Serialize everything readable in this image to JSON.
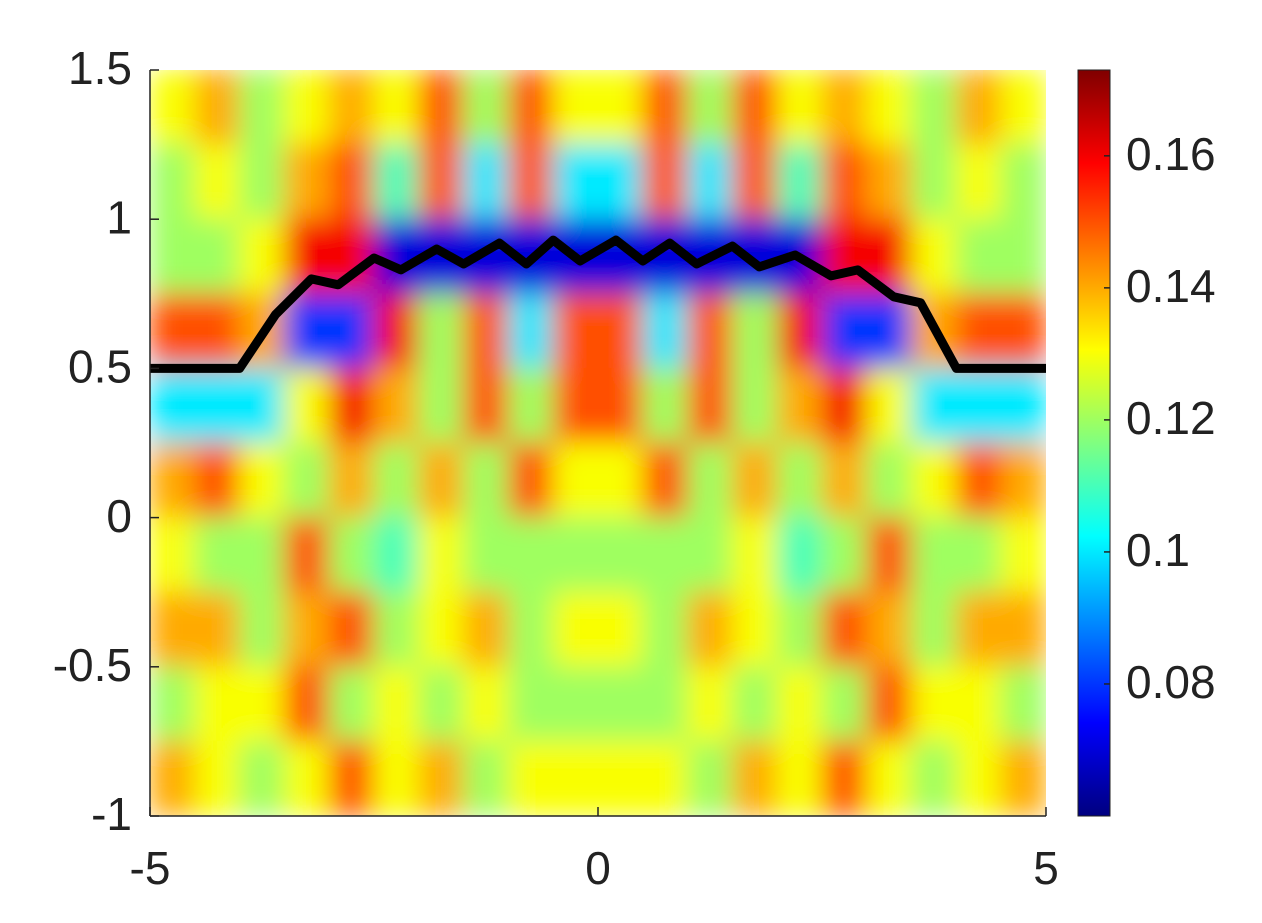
{
  "chart_data": {
    "type": "heatmap",
    "colormap": "jet",
    "x": [
      -4.75,
      -4.25,
      -3.75,
      -3.25,
      -2.75,
      -2.25,
      -1.75,
      -1.25,
      -0.75,
      -0.25,
      0.25,
      0.75,
      1.25,
      1.75,
      2.25,
      2.75,
      3.25,
      3.75,
      4.25,
      4.75
    ],
    "y": [
      1.375,
      1.125,
      0.875,
      0.625,
      0.375,
      0.125,
      -0.125,
      -0.375,
      -0.625,
      -0.875
    ],
    "z": [
      [
        0.13,
        0.14,
        0.12,
        0.13,
        0.14,
        0.13,
        0.15,
        0.12,
        0.15,
        0.13,
        0.13,
        0.15,
        0.12,
        0.15,
        0.13,
        0.14,
        0.13,
        0.12,
        0.14,
        0.13
      ],
      [
        0.12,
        0.13,
        0.12,
        0.14,
        0.15,
        0.11,
        0.15,
        0.1,
        0.15,
        0.1,
        0.1,
        0.15,
        0.1,
        0.15,
        0.11,
        0.15,
        0.14,
        0.12,
        0.13,
        0.12
      ],
      [
        0.12,
        0.12,
        0.13,
        0.16,
        0.16,
        0.07,
        0.07,
        0.07,
        0.07,
        0.07,
        0.07,
        0.07,
        0.07,
        0.07,
        0.07,
        0.16,
        0.16,
        0.13,
        0.12,
        0.12
      ],
      [
        0.15,
        0.15,
        0.14,
        0.08,
        0.08,
        0.16,
        0.12,
        0.15,
        0.1,
        0.15,
        0.15,
        0.1,
        0.15,
        0.12,
        0.16,
        0.08,
        0.08,
        0.14,
        0.15,
        0.15
      ],
      [
        0.1,
        0.1,
        0.1,
        0.13,
        0.16,
        0.14,
        0.12,
        0.15,
        0.12,
        0.15,
        0.15,
        0.12,
        0.15,
        0.12,
        0.14,
        0.16,
        0.13,
        0.1,
        0.1,
        0.1
      ],
      [
        0.14,
        0.15,
        0.13,
        0.12,
        0.14,
        0.12,
        0.14,
        0.12,
        0.15,
        0.13,
        0.13,
        0.15,
        0.12,
        0.14,
        0.12,
        0.14,
        0.12,
        0.13,
        0.15,
        0.14
      ],
      [
        0.13,
        0.12,
        0.12,
        0.15,
        0.12,
        0.11,
        0.13,
        0.12,
        0.12,
        0.12,
        0.12,
        0.12,
        0.12,
        0.13,
        0.11,
        0.12,
        0.15,
        0.12,
        0.12,
        0.13
      ],
      [
        0.14,
        0.14,
        0.12,
        0.14,
        0.15,
        0.12,
        0.13,
        0.14,
        0.12,
        0.13,
        0.13,
        0.12,
        0.14,
        0.13,
        0.12,
        0.15,
        0.14,
        0.12,
        0.14,
        0.14
      ],
      [
        0.12,
        0.13,
        0.13,
        0.15,
        0.12,
        0.13,
        0.12,
        0.13,
        0.12,
        0.12,
        0.12,
        0.12,
        0.13,
        0.12,
        0.13,
        0.12,
        0.15,
        0.13,
        0.13,
        0.12
      ],
      [
        0.14,
        0.13,
        0.12,
        0.13,
        0.15,
        0.13,
        0.14,
        0.12,
        0.13,
        0.13,
        0.13,
        0.13,
        0.12,
        0.14,
        0.13,
        0.15,
        0.13,
        0.12,
        0.13,
        0.14
      ]
    ],
    "line": {
      "color": "#000000",
      "x": [
        -5,
        -4,
        -3.6,
        -3.2,
        -2.9,
        -2.5,
        -2.2,
        -1.8,
        -1.5,
        -1.1,
        -0.8,
        -0.5,
        -0.2,
        0.2,
        0.5,
        0.8,
        1.1,
        1.5,
        1.8,
        2.2,
        2.6,
        2.9,
        3.3,
        3.6,
        4,
        5
      ],
      "y": [
        0.5,
        0.5,
        0.68,
        0.8,
        0.78,
        0.87,
        0.83,
        0.9,
        0.85,
        0.92,
        0.85,
        0.93,
        0.86,
        0.93,
        0.86,
        0.92,
        0.85,
        0.91,
        0.84,
        0.88,
        0.81,
        0.83,
        0.74,
        0.72,
        0.5,
        0.5
      ]
    },
    "xlim": [
      -5,
      5
    ],
    "xticks": [
      -5,
      0,
      5
    ],
    "ylim": [
      -1,
      1.5
    ],
    "yticks": [
      -1,
      -0.5,
      0,
      0.5,
      1,
      1.5
    ],
    "clim": [
      0.06,
      0.173
    ],
    "cticks": [
      0.08,
      0.1,
      0.12,
      0.14,
      0.16
    ]
  }
}
